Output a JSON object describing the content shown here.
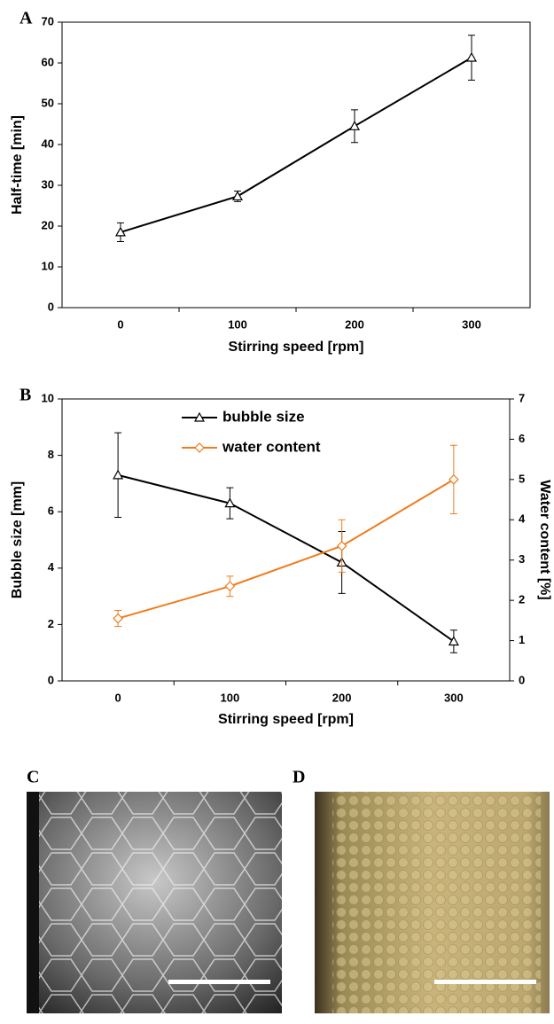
{
  "chart_data": [
    {
      "type": "line",
      "panel_label": "A",
      "x_label": "Stirring speed [rpm]",
      "y_label": "Half-time [min]",
      "categories": [
        "0",
        "100",
        "200",
        "300"
      ],
      "series": [
        {
          "color": "#000000",
          "marker": "triangle",
          "values": [
            18.5,
            27.3,
            44.5,
            61.3
          ],
          "errors": [
            2.3,
            1.3,
            4.0,
            5.5
          ]
        }
      ],
      "ylim": [
        0,
        70
      ],
      "yticks": [
        0,
        10,
        20,
        30,
        40,
        50,
        60,
        70
      ]
    },
    {
      "type": "line",
      "panel_label": "B",
      "x_label": "Stirring speed [rpm]",
      "y_label": "Bubble size [mm]",
      "y2_label": "Water content [%]",
      "categories": [
        "0",
        "100",
        "200",
        "300"
      ],
      "series": [
        {
          "name": "bubble size",
          "color": "#000000",
          "marker": "triangle",
          "values": [
            7.3,
            6.3,
            4.2,
            1.4
          ],
          "errors": [
            1.5,
            0.55,
            1.1,
            0.4
          ]
        },
        {
          "name": "water content",
          "color": "#f07c1c",
          "marker": "diamond",
          "axis": "y2",
          "values": [
            1.55,
            2.35,
            3.35,
            5.0
          ],
          "errors": [
            0.2,
            0.25,
            0.65,
            0.85
          ]
        }
      ],
      "ylim": [
        0,
        10
      ],
      "yticks": [
        0,
        2,
        4,
        6,
        8,
        10
      ],
      "y2lim": [
        0,
        7
      ],
      "y2ticks": [
        0,
        1,
        2,
        3,
        4,
        5,
        6,
        7
      ]
    }
  ],
  "images": [
    {
      "label": "C"
    },
    {
      "label": "D"
    }
  ]
}
